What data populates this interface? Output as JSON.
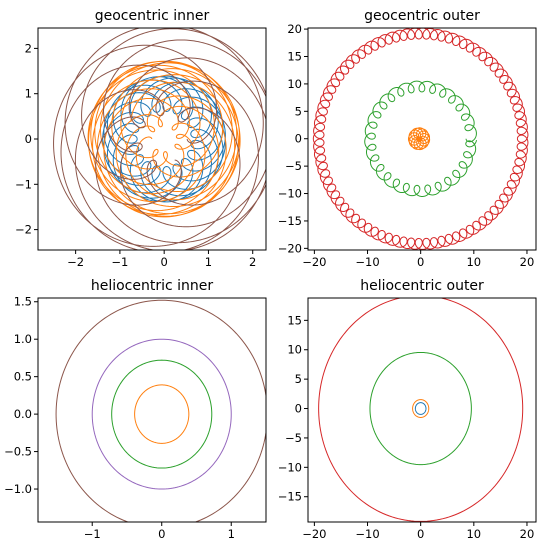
{
  "chart_data": [
    {
      "type": "line",
      "title": "geocentric inner",
      "xlim": [
        -2.85,
        2.3
      ],
      "ylim": [
        -2.45,
        2.45
      ],
      "xticks": [
        -2,
        -1,
        0,
        1,
        2
      ],
      "yticks": [
        -2,
        -1,
        0,
        1,
        2
      ],
      "tick_labels_x": [
        "−2",
        "−1",
        "0",
        "1",
        "2"
      ],
      "tick_labels_y": [
        "−2",
        "−1",
        "0",
        "1",
        "2"
      ],
      "grid": false,
      "series": [
        {
          "color": "#1f77b4",
          "kind": "geocentric",
          "planet_radius": 0.39,
          "planet_period": 0.24,
          "earth_radius": 1.0
        },
        {
          "color": "#ff7f0e",
          "kind": "geocentric",
          "planet_radius": 0.72,
          "planet_period": 0.62,
          "earth_radius": 1.0
        },
        {
          "color": "#2ca02c",
          "kind": "geocentric",
          "planet_radius": 1.0,
          "planet_period": 1.0,
          "earth_radius": 1.0,
          "note_radius": 1.52
        },
        {
          "color": "#8c564b",
          "kind": "geocentric",
          "planet_radius": 1.52,
          "planet_period": 1.88,
          "earth_radius": 1.0
        }
      ]
    },
    {
      "type": "line",
      "title": "geocentric outer",
      "xlim": [
        -21.2,
        21.7
      ],
      "ylim": [
        -20.3,
        20.2
      ],
      "xticks": [
        -20,
        -10,
        0,
        10,
        20
      ],
      "yticks": [
        -20,
        -15,
        -10,
        -5,
        0,
        5,
        10,
        15,
        20
      ],
      "tick_labels_x": [
        "−20",
        "−10",
        "0",
        "10",
        "20"
      ],
      "tick_labels_y": [
        "−20",
        "−15",
        "−10",
        "−5",
        "0",
        "5",
        "10",
        "15",
        "20"
      ],
      "grid": false,
      "series": [
        {
          "color": "#ff7f0e",
          "kind": "geocentric",
          "planet_radius": 1.0,
          "planet_period": 11.86,
          "earth_radius": 1.0,
          "center_offset": [
            -0.3,
            0.0
          ]
        },
        {
          "color": "#2ca02c",
          "kind": "geocentric",
          "planet_radius": 9.54,
          "planet_period": 29.46,
          "earth_radius": 1.0
        },
        {
          "color": "#d62728",
          "kind": "geocentric",
          "planet_radius": 19.2,
          "planet_period": 84.0,
          "earth_radius": 1.0
        }
      ]
    },
    {
      "type": "line",
      "title": "heliocentric inner",
      "xlim": [
        -1.78,
        1.5
      ],
      "ylim": [
        -1.44,
        1.55
      ],
      "xticks": [
        -1,
        0,
        1
      ],
      "yticks": [
        -1.0,
        -0.5,
        0.0,
        0.5,
        1.0,
        1.5
      ],
      "tick_labels_x": [
        "−1",
        "0",
        "1"
      ],
      "tick_labels_y": [
        "−1.0",
        "−0.5",
        "0.0",
        "0.5",
        "1.0",
        "1.5"
      ],
      "grid": false,
      "series": [
        {
          "color": "#ff7f0e",
          "kind": "circle",
          "radius": 0.39
        },
        {
          "color": "#2ca02c",
          "kind": "circle",
          "radius": 0.72
        },
        {
          "color": "#9467bd",
          "kind": "circle",
          "radius": 1.0
        },
        {
          "color": "#8c564b",
          "kind": "circle",
          "radius": 1.52
        }
      ]
    },
    {
      "type": "line",
      "title": "heliocentric outer",
      "xlim": [
        -21.2,
        21.7
      ],
      "ylim": [
        -19.3,
        18.8
      ],
      "xticks": [
        -20,
        -10,
        0,
        10,
        20
      ],
      "yticks": [
        -15,
        -10,
        -5,
        0,
        5,
        10,
        15
      ],
      "tick_labels_x": [
        "−20",
        "−10",
        "0",
        "10",
        "20"
      ],
      "tick_labels_y": [
        "−15",
        "−10",
        "−5",
        "0",
        "5",
        "10",
        "15"
      ],
      "grid": false,
      "series": [
        {
          "color": "#1f77b4",
          "kind": "circle",
          "radius": 1.0
        },
        {
          "color": "#ff7f0e",
          "kind": "circle",
          "radius": 1.52
        },
        {
          "color": "#2ca02c",
          "kind": "circle",
          "radius": 9.54
        },
        {
          "color": "#d62728",
          "kind": "circle",
          "radius": 19.2
        }
      ]
    }
  ]
}
